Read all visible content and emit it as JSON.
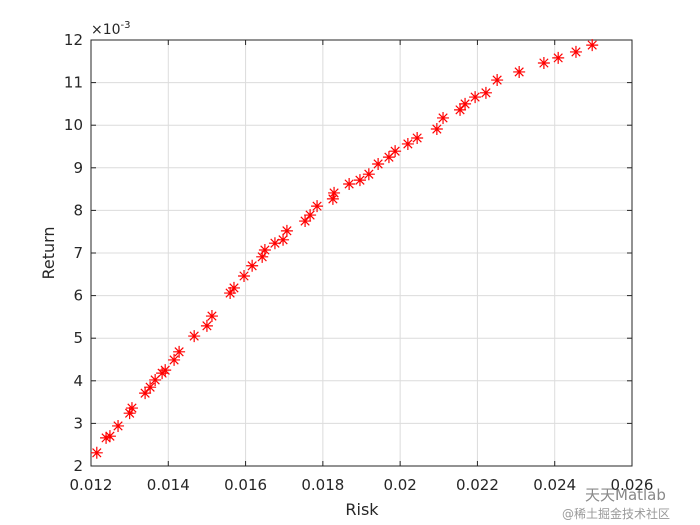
{
  "chart_data": {
    "type": "scatter",
    "xlabel": "Risk",
    "ylabel": "Return",
    "y_exponent": {
      "base": "×10",
      "power": "-3"
    },
    "watermark": [
      "天天Matlab",
      "@稀土掘金技术社区"
    ],
    "xlim": [
      0.012,
      0.026
    ],
    "xticks": [
      0.012,
      0.014,
      0.016,
      0.018,
      0.02,
      0.022,
      0.024,
      0.026
    ],
    "ylim": [
      2,
      12
    ],
    "yticks": [
      2,
      3,
      4,
      5,
      6,
      7,
      8,
      9,
      10,
      11,
      12
    ],
    "grid": true,
    "color": "#ff0000",
    "marker": "*",
    "x": [
      0.01215,
      0.01239,
      0.01249,
      0.0127,
      0.013,
      0.01306,
      0.0134,
      0.01353,
      0.01366,
      0.01384,
      0.01392,
      0.01415,
      0.01428,
      0.01467,
      0.015,
      0.01513,
      0.0156,
      0.0157,
      0.01596,
      0.01617,
      0.01643,
      0.0165,
      0.01676,
      0.01697,
      0.01707,
      0.01754,
      0.01767,
      0.01785,
      0.01826,
      0.01829,
      0.01868,
      0.01896,
      0.01919,
      0.01943,
      0.01971,
      0.01987,
      0.0202,
      0.02044,
      0.02095,
      0.02111,
      0.02155,
      0.02168,
      0.02194,
      0.02222,
      0.02251,
      0.02308,
      0.02372,
      0.02409,
      0.02455,
      0.02497
    ],
    "values": [
      2.31,
      2.66,
      2.7,
      2.94,
      3.24,
      3.36,
      3.71,
      3.85,
      4.02,
      4.18,
      4.25,
      4.49,
      4.68,
      5.05,
      5.29,
      5.52,
      6.06,
      6.18,
      6.46,
      6.7,
      6.91,
      7.07,
      7.23,
      7.31,
      7.52,
      7.75,
      7.89,
      8.1,
      8.27,
      8.41,
      8.62,
      8.71,
      8.85,
      9.09,
      9.25,
      9.39,
      9.56,
      9.7,
      9.91,
      10.17,
      10.36,
      10.5,
      10.66,
      10.76,
      11.06,
      11.25,
      11.46,
      11.58,
      11.72,
      11.88
    ]
  }
}
